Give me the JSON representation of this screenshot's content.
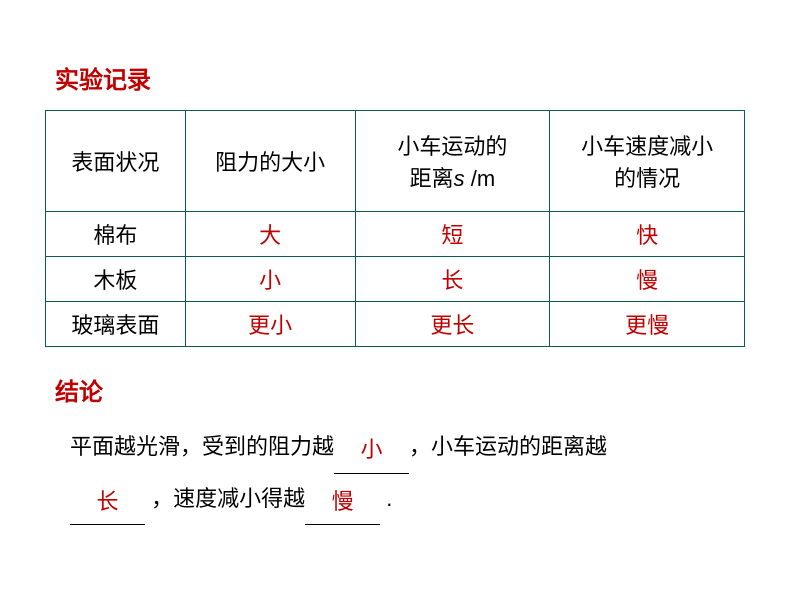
{
  "colors": {
    "red": "#c00000",
    "black": "#000000",
    "border": "#0a5c50",
    "background": "#ffffff"
  },
  "fonts": {
    "title_size": 24,
    "body_size": 22
  },
  "section1": {
    "title": "实验记录"
  },
  "table": {
    "headers": {
      "col1": "表面状况",
      "col2": "阻力的大小",
      "col3_line1": "小车运动的",
      "col3_line2_pre": "距离",
      "col3_line2_var": "s",
      "col3_line2_post": " /m",
      "col4_line1": "小车速度减小",
      "col4_line2": "的情况"
    },
    "rows": [
      {
        "surface": "棉布",
        "resistance": "大",
        "distance": "短",
        "speed": "快"
      },
      {
        "surface": "木板",
        "resistance": "小",
        "distance": "长",
        "speed": "慢"
      },
      {
        "surface": "玻璃表面",
        "resistance": "更小",
        "distance": "更长",
        "speed": "更慢"
      }
    ]
  },
  "section2": {
    "title": "结论",
    "text": {
      "part1": "平面越光滑，受到的阻力越",
      "blank1": "小",
      "part2": "，小车运动的距离越",
      "blank2": "长",
      "part3": " ，速度减小得越",
      "blank3": "慢",
      "part4": " ."
    }
  }
}
